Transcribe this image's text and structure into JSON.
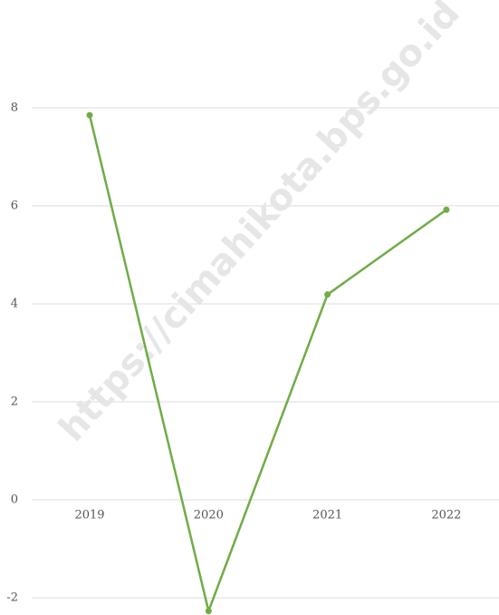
{
  "chart_data": {
    "type": "line",
    "categories": [
      "2019",
      "2020",
      "2021",
      "2022"
    ],
    "series": [
      {
        "name": null,
        "color": "#6fac46",
        "values": [
          7.85,
          -2.27,
          4.19,
          5.92
        ]
      }
    ],
    "ylim": [
      -2.35,
      10.2
    ],
    "yticks": [
      -2,
      0,
      2,
      4,
      6,
      8
    ],
    "grid": true,
    "watermark": "https://cimahikota.bps.go.id"
  }
}
